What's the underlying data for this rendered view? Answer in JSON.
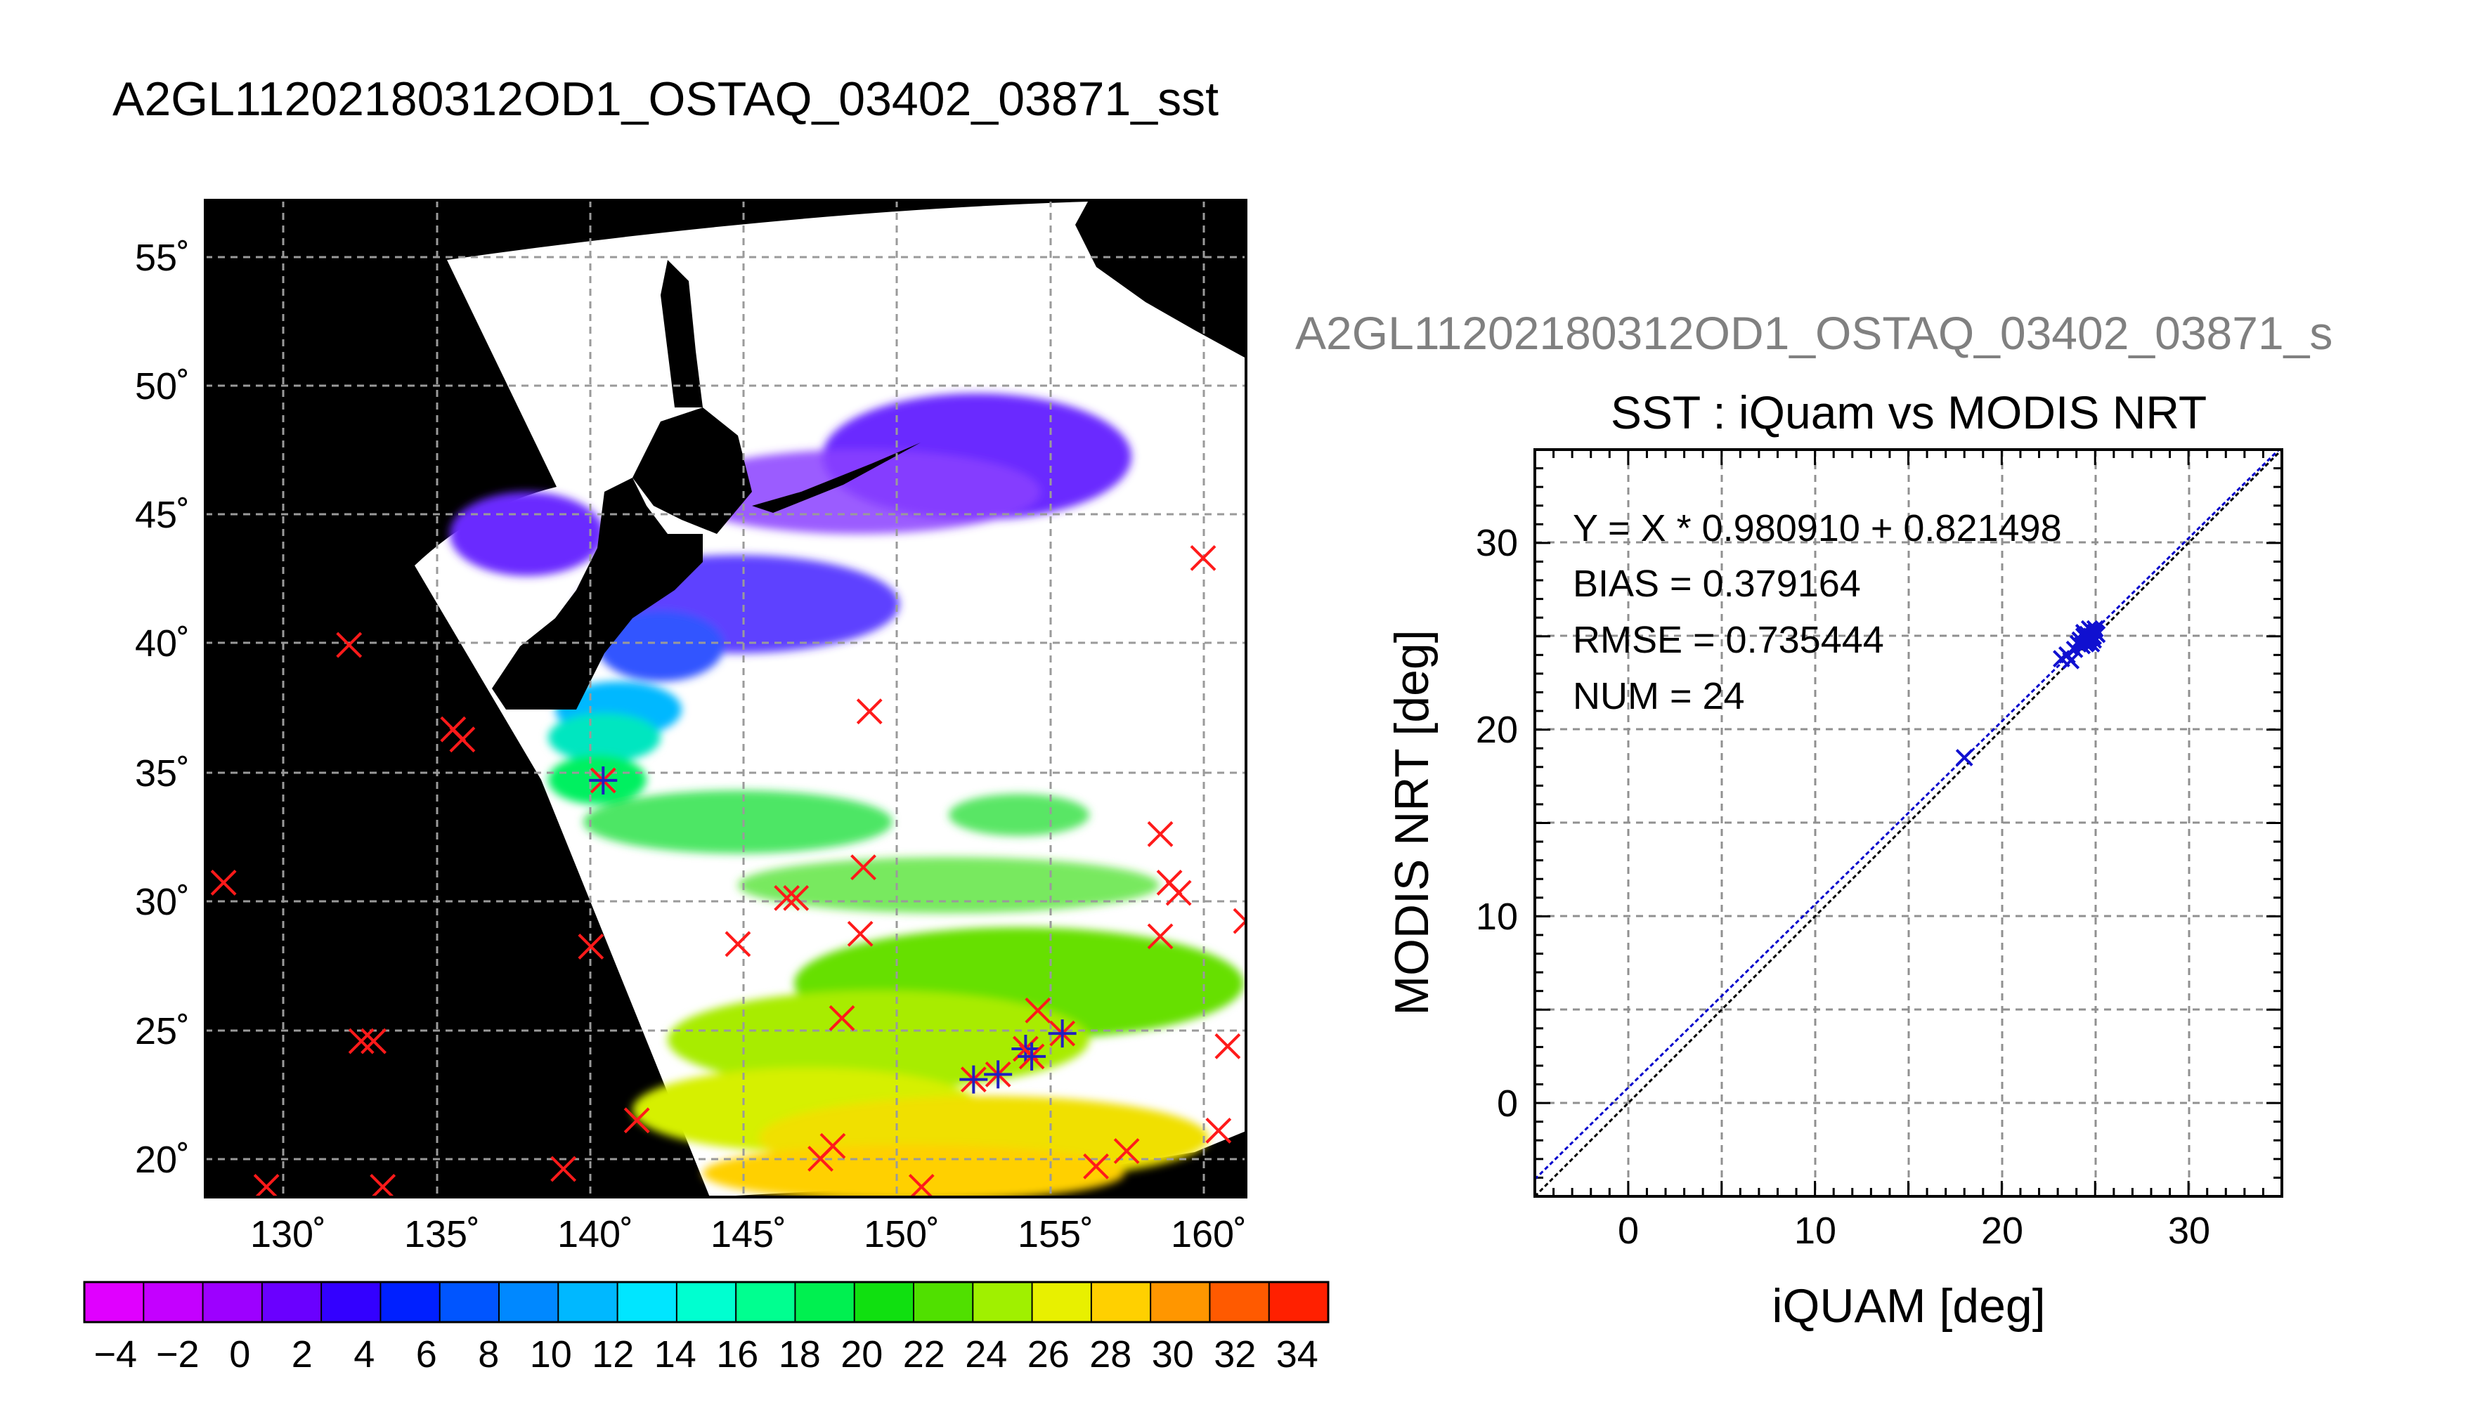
{
  "figure": {
    "main_title": "A2GL11202180312OD1_OSTAQ_03402_03871_sst",
    "secondary_title": "A2GL11202180312OD1_OSTAQ_03402_03871_s"
  },
  "chart_data": [
    {
      "type": "map",
      "lon_ticks": [
        "130˚",
        "135˚",
        "140˚",
        "145˚",
        "150˚",
        "155˚",
        "160˚"
      ],
      "lat_ticks": [
        "20˚",
        "25˚",
        "30˚",
        "35˚",
        "40˚",
        "45˚",
        "50˚",
        "55˚"
      ],
      "lon_range": [
        127.5,
        161.5
      ],
      "lat_range": [
        18.5,
        57.5
      ],
      "grid": true,
      "colorbar": {
        "label_values": [
          "−4",
          "−2",
          "0",
          "2",
          "4",
          "6",
          "8",
          "10",
          "12",
          "14",
          "16",
          "18",
          "20",
          "22",
          "24",
          "26",
          "28",
          "30",
          "32",
          "34"
        ],
        "range": [
          -5,
          35
        ],
        "colors": [
          "#e000ff",
          "#c400ff",
          "#9d00ff",
          "#6a00ff",
          "#3300ff",
          "#0020ff",
          "#0055ff",
          "#0088ff",
          "#00b8ff",
          "#00e6ff",
          "#00ffd0",
          "#00ff90",
          "#00f050",
          "#10e010",
          "#50e000",
          "#a0f000",
          "#e8f000",
          "#ffd000",
          "#ff9600",
          "#ff5a00",
          "#ff2000"
        ]
      },
      "unmatched_points": [
        [
          128.1,
          30.8
        ],
        [
          132.2,
          40.1
        ],
        [
          135.6,
          36.8
        ],
        [
          135.9,
          36.4
        ],
        [
          132.6,
          24.6
        ],
        [
          133.0,
          24.6
        ],
        [
          129.5,
          18.9
        ],
        [
          133.3,
          18.9
        ],
        [
          139.2,
          19.6
        ],
        [
          141.6,
          21.5
        ],
        [
          140.1,
          28.3
        ],
        [
          144.9,
          28.4
        ],
        [
          146.5,
          30.2
        ],
        [
          146.8,
          30.2
        ],
        [
          149.0,
          31.4
        ],
        [
          148.9,
          28.8
        ],
        [
          148.3,
          25.5
        ],
        [
          147.6,
          20.0
        ],
        [
          148.0,
          20.5
        ],
        [
          150.9,
          18.9
        ],
        [
          154.7,
          25.8
        ],
        [
          156.6,
          19.7
        ],
        [
          157.6,
          20.3
        ],
        [
          158.7,
          32.7
        ],
        [
          159.0,
          30.8
        ],
        [
          159.3,
          30.4
        ],
        [
          158.7,
          28.7
        ],
        [
          160.1,
          43.5
        ],
        [
          161.5,
          29.3
        ],
        [
          160.6,
          21.1
        ],
        [
          160.9,
          24.4
        ],
        [
          149.2,
          37.5
        ]
      ],
      "matched_points": [
        [
          140.5,
          34.8
        ],
        [
          152.6,
          23.1
        ],
        [
          153.4,
          23.3
        ],
        [
          154.3,
          24.3
        ],
        [
          154.5,
          24.0
        ],
        [
          155.5,
          24.9
        ]
      ]
    },
    {
      "type": "scatter",
      "title": "SST : iQuam vs MODIS NRT",
      "xlabel": "iQUAM [deg]",
      "ylabel": "MODIS NRT [deg]",
      "xlim": [
        -5,
        35
      ],
      "ylim": [
        -5,
        35
      ],
      "xticks": [
        0,
        10,
        20,
        30
      ],
      "yticks": [
        0,
        10,
        20,
        30
      ],
      "grid": true,
      "stats": [
        "Y = X * 0.980910 + 0.821498",
        "BIAS = 0.379164",
        "RMSE = 0.735444",
        "NUM = 24"
      ],
      "fit": {
        "slope": 0.98091,
        "intercept": 0.821498
      },
      "points": [
        [
          18.0,
          18.5
        ],
        [
          23.2,
          23.8
        ],
        [
          23.5,
          24.0
        ],
        [
          23.7,
          23.7
        ],
        [
          24.2,
          24.8
        ],
        [
          24.4,
          25.0
        ],
        [
          24.5,
          24.6
        ],
        [
          24.6,
          25.1
        ],
        [
          24.7,
          24.9
        ],
        [
          24.8,
          25.3
        ],
        [
          24.9,
          25.0
        ],
        [
          25.0,
          25.4
        ],
        [
          24.3,
          24.5
        ],
        [
          24.6,
          24.7
        ],
        [
          24.8,
          24.6
        ],
        [
          25.0,
          25.2
        ],
        [
          24.4,
          25.2
        ],
        [
          24.7,
          25.4
        ],
        [
          24.9,
          24.8
        ],
        [
          25.1,
          25.1
        ],
        [
          24.5,
          24.9
        ],
        [
          23.9,
          24.3
        ],
        [
          24.1,
          24.6
        ],
        [
          24.8,
          25.0
        ]
      ]
    }
  ]
}
